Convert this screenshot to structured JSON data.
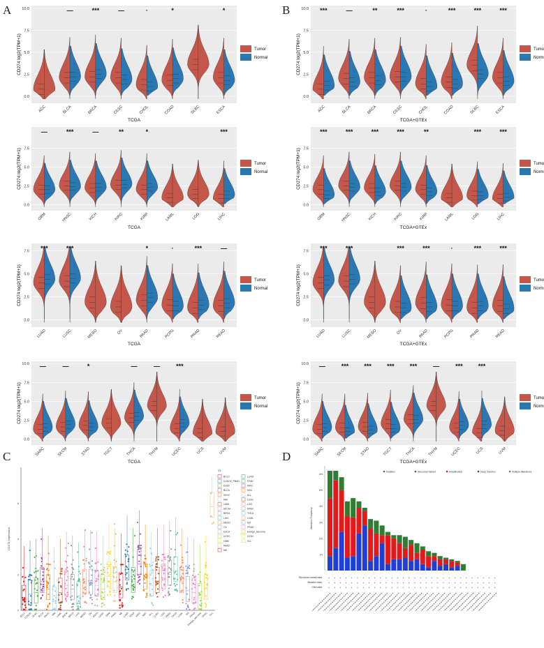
{
  "panel_labels": {
    "A": "A",
    "B": "B",
    "C": "C",
    "D": "D"
  },
  "legend": {
    "tumor": "Tumor",
    "normal": "Normal"
  },
  "colors": {
    "tumor_A": "#c4574a",
    "normal_A": "#2a78b3",
    "tumor_B": "#c4574a",
    "normal_B": "#2a78b3",
    "bg": "#ebebeb"
  },
  "ylabel": "CD274  log2(TPM+1)",
  "chart_data": [
    {
      "panel": "A",
      "type": "violin",
      "xlabel": "TCGA",
      "ylim": [
        -0.8,
        10.3
      ],
      "yticks": [
        0.0,
        2.5,
        5.0,
        7.5,
        10.0
      ],
      "ytick_labels": [
        "0.0",
        "2.5",
        "5.0",
        "7.5",
        "10.0"
      ],
      "categories": [
        "ACC",
        "BLCA",
        "BRCA",
        "CESC",
        "CHOL",
        "COAD",
        "DLBC",
        "ESCA"
      ],
      "tumor_median": [
        0.8,
        2.1,
        2.2,
        2.1,
        1.3,
        1.8,
        3.6,
        2.1
      ],
      "normal_median": [
        null,
        2.2,
        2.5,
        1.9,
        1.1,
        2.0,
        null,
        1.8
      ],
      "significance": [
        "",
        "—",
        "***",
        "—",
        "·",
        "*",
        "",
        "*"
      ]
    },
    {
      "panel": "A",
      "type": "violin",
      "xlabel": "TCGA",
      "ylim": [
        -0.8,
        10.3
      ],
      "yticks": [
        0.0,
        2.5,
        5.0,
        7.5
      ],
      "ytick_labels": [
        "0.0",
        "2.5",
        "5.0",
        "7.5"
      ],
      "categories": [
        "GBM",
        "HNSC",
        "KICH",
        "KIRC",
        "KIRP",
        "LAML",
        "LGG",
        "LIHC"
      ],
      "tumor_median": [
        2.0,
        2.5,
        2.2,
        2.6,
        2.0,
        0.9,
        1.4,
        0.8
      ],
      "normal_median": [
        2.0,
        2.4,
        2.3,
        2.7,
        2.3,
        null,
        null,
        1.3
      ],
      "significance": [
        "—",
        "***",
        "—",
        "**",
        "*",
        "",
        "",
        "***"
      ]
    },
    {
      "panel": "A",
      "type": "violin",
      "xlabel": "TCGA",
      "ylim": [
        -0.8,
        8.3
      ],
      "yticks": [
        0.0,
        2.5,
        5.0,
        7.5
      ],
      "ytick_labels": [
        "0.0",
        "2.5",
        "5.0",
        "7.5"
      ],
      "categories": [
        "LUAD",
        "LUSC",
        "MESO",
        "OV",
        "PAAD",
        "PCPG",
        "PRAD",
        "READ"
      ],
      "tumor_median": [
        4.0,
        4.2,
        1.9,
        1.4,
        2.1,
        1.6,
        1.3,
        1.5
      ],
      "normal_median": [
        4.4,
        4.5,
        null,
        null,
        2.4,
        1.5,
        1.6,
        1.8
      ],
      "significance": [
        "***",
        "***",
        "",
        "",
        "*",
        "·",
        "***",
        "—"
      ]
    },
    {
      "panel": "A",
      "type": "violin",
      "xlabel": "TCGA",
      "ylim": [
        -0.8,
        10.3
      ],
      "yticks": [
        0.0,
        2.5,
        5.0,
        7.5,
        10.0
      ],
      "ytick_labels": [
        "0.0",
        "2.5",
        "5.0",
        "7.5",
        "10.0"
      ],
      "categories": [
        "SARC",
        "SKCM",
        "STAD",
        "TGCT",
        "THCA",
        "THYM",
        "UCEC",
        "UCS",
        "UVM"
      ],
      "tumor_median": [
        1.3,
        1.6,
        1.8,
        2.1,
        2.8,
        4.4,
        1.4,
        0.8,
        1.0
      ],
      "normal_median": [
        1.5,
        1.9,
        1.6,
        null,
        3.0,
        null,
        2.1,
        null,
        null
      ],
      "significance": [
        "—",
        "—",
        "*",
        "",
        "—",
        "—",
        "***",
        "",
        ""
      ]
    },
    {
      "panel": "B",
      "type": "violin",
      "xlabel": "TCGA+GTEx",
      "ylim": [
        -0.8,
        10.3
      ],
      "yticks": [
        0.0,
        2.5,
        5.0,
        7.5,
        10.0
      ],
      "ytick_labels": [
        "0.0",
        "2.5",
        "5.0",
        "7.5",
        "10.0"
      ],
      "categories": [
        "ACC",
        "BLCA",
        "BRCA",
        "CESC",
        "CHOL",
        "COAD",
        "DLBC",
        "ESCA"
      ],
      "tumor_median": [
        0.8,
        2.0,
        2.1,
        2.2,
        1.4,
        1.6,
        3.5,
        2.1
      ],
      "normal_median": [
        1.2,
        1.6,
        1.8,
        2.2,
        1.1,
        1.4,
        2.5,
        1.7
      ],
      "significance": [
        "***",
        "—",
        "**",
        "***",
        "·",
        "***",
        "***",
        "***"
      ]
    },
    {
      "panel": "B",
      "type": "violin",
      "xlabel": "TCGA+GTEx",
      "ylim": [
        -0.8,
        10.3
      ],
      "yticks": [
        0.0,
        2.5,
        5.0,
        7.5
      ],
      "ytick_labels": [
        "0.0",
        "2.5",
        "5.0",
        "7.5"
      ],
      "categories": [
        "GBM",
        "HNSC",
        "KICH",
        "KIRC",
        "KIRP",
        "LAML",
        "LGG",
        "LIHC"
      ],
      "tumor_median": [
        2.0,
        2.5,
        2.2,
        2.5,
        2.0,
        0.9,
        1.2,
        0.8
      ],
      "normal_median": [
        1.3,
        2.3,
        1.7,
        2.3,
        1.7,
        null,
        1.2,
        1.0
      ],
      "significance": [
        "***",
        "***",
        "***",
        "***",
        "**",
        "",
        "***",
        "***"
      ]
    },
    {
      "panel": "B",
      "type": "violin",
      "xlabel": "TCGA+GTEx",
      "ylim": [
        -0.8,
        8.3
      ],
      "yticks": [
        0.0,
        2.5,
        5.0,
        7.5
      ],
      "ytick_labels": [
        "0.0",
        "2.5",
        "5.0",
        "7.5"
      ],
      "categories": [
        "LUAD",
        "LUSC",
        "MESO",
        "OV",
        "PAAD",
        "PCPG",
        "PRAD",
        "READ"
      ],
      "tumor_median": [
        4.0,
        4.2,
        1.9,
        1.4,
        1.8,
        1.6,
        1.3,
        1.5
      ],
      "normal_median": [
        4.3,
        4.4,
        null,
        1.3,
        1.4,
        1.5,
        1.5,
        1.2
      ],
      "significance": [
        "***",
        "***",
        "",
        "***",
        "***",
        "·",
        "***",
        "***"
      ]
    },
    {
      "panel": "B",
      "type": "violin",
      "xlabel": "TCGA+GTEx",
      "ylim": [
        -0.8,
        10.3
      ],
      "yticks": [
        0.0,
        2.5,
        5.0,
        7.5,
        10.0
      ],
      "ytick_labels": [
        "0.0",
        "2.5",
        "5.0",
        "7.5",
        "10.0"
      ],
      "categories": [
        "SARC",
        "SKCM",
        "STAD",
        "TGCT",
        "THCA",
        "THYM",
        "UCEC",
        "UCS",
        "UVM"
      ],
      "tumor_median": [
        1.3,
        1.5,
        1.6,
        2.0,
        2.6,
        4.4,
        1.5,
        0.8,
        1.1
      ],
      "normal_median": [
        1.5,
        1.0,
        1.2,
        1.4,
        2.6,
        null,
        1.8,
        1.9,
        null
      ],
      "significance": [
        "—",
        "***",
        "***",
        "***",
        "***",
        "—",
        "***",
        "***",
        ""
      ]
    },
    {
      "panel": "C",
      "type": "scatter",
      "ylabel": "CD274 expression",
      "categories": [
        "BCLC",
        "CCKO2",
        "DLBC",
        "BLCA",
        "SKHC",
        "MM",
        "LAML",
        "SKCM",
        "BRCA",
        "LIHC",
        "MESO",
        "OV",
        "ESCA",
        "UCEC",
        "GBM",
        "PAAD",
        "NB",
        "LUAD",
        "STAD",
        "KIRC",
        "NSC",
        "ALL",
        "LUSC",
        "LGG",
        "HNSC",
        "THCA",
        "LCML",
        "M3",
        "PRAD",
        "Ewings_sarcoma",
        "CESC",
        "CLL"
      ],
      "medians": [
        0.6,
        0.9,
        1.0,
        1.6,
        1.2,
        0.5,
        1.0,
        1.4,
        1.2,
        0.8,
        1.5,
        1.5,
        1.4,
        1.2,
        1.9,
        1.6,
        1.3,
        2.3,
        1.6,
        2.6,
        1.8,
        1.4,
        1.6,
        1.8,
        2.0,
        2.2,
        1.6,
        1.1,
        1.0,
        0.7,
        1.2,
        5.8
      ],
      "legend_title": "V1",
      "legend_items": [
        "BCLC",
        "CCKO2_PBAD",
        "DLBC",
        "BLCA",
        "SKHC",
        "MM",
        "LAML",
        "SKCM",
        "BRCA",
        "LIHC",
        "MESO",
        "OV",
        "ESCA",
        "UCEC",
        "GBM",
        "PAAD",
        "NB",
        "LUAD",
        "STAD",
        "KIRC",
        "NSC",
        "ALL",
        "LUSC",
        "LGG",
        "HNSC",
        "THCA",
        "LCML",
        "M3",
        "PRAD",
        "Ewings_sarcoma",
        "CESC",
        "CLL"
      ]
    },
    {
      "panel": "D",
      "type": "bar",
      "ylabel": "Alteration Frequency",
      "legend_items": [
        "Mutation",
        "Structural Variant",
        "Amplification",
        "Deep Deletion",
        "Multiple Alterations"
      ],
      "legend_colors": [
        "#2e7d32",
        "#7b3fa0",
        "#e31a1c",
        "#1f3fd8",
        "#777777"
      ],
      "yticks": [
        "1%",
        "2%",
        "3%",
        "4%",
        "5%",
        "6%"
      ],
      "bars": [
        {
          "amp": 3.6,
          "del": 0.9,
          "mut": 1.7
        },
        {
          "amp": 4.2,
          "del": 1.4,
          "mut": 0.6
        },
        {
          "amp": 2.6,
          "del": 2.4,
          "mut": 0.8
        },
        {
          "amp": 2.6,
          "del": 0.8,
          "mut": 0.9
        },
        {
          "amp": 2.4,
          "del": 0.9,
          "mut": 1.2
        },
        {
          "amp": 1.6,
          "del": 2.3,
          "mut": 0.4
        },
        {
          "amp": 0.9,
          "del": 2.8,
          "mut": 0.2
        },
        {
          "amp": 2.0,
          "del": 0.6,
          "mut": 0.6
        },
        {
          "amp": 1.4,
          "del": 0.9,
          "mut": 0.8
        },
        {
          "amp": 0.5,
          "del": 1.7,
          "mut": 0.6
        },
        {
          "amp": 1.8,
          "del": 0.4,
          "mut": 0.2
        },
        {
          "amp": 1.3,
          "del": 0.7,
          "mut": 0.2
        },
        {
          "amp": 1.0,
          "del": 0.7,
          "mut": 0.5
        },
        {
          "amp": 0.6,
          "del": 0.8,
          "mut": 0.7
        },
        {
          "amp": 1.0,
          "del": 0.6,
          "mut": 0.3
        },
        {
          "amp": 0.4,
          "del": 0.7,
          "mut": 0.6
        },
        {
          "amp": 0.9,
          "del": 0.4,
          "mut": 0.2
        },
        {
          "amp": 0.7,
          "del": 0.2,
          "mut": 0.3
        },
        {
          "amp": 0.3,
          "del": 0.6,
          "mut": 0.2
        },
        {
          "amp": 0.4,
          "del": 0.3,
          "mut": 0.2
        },
        {
          "amp": 0.3,
          "del": 0.4,
          "mut": 0.1
        },
        {
          "amp": 0.4,
          "del": 0.2,
          "mut": 0.1
        },
        {
          "amp": 0.2,
          "del": 0.3,
          "mut": 0.1
        },
        {
          "amp": 0.0,
          "del": 0.0,
          "mut": 0.4
        }
      ],
      "row_labels": [
        "Structural variant data",
        "Mutation data",
        "CNA data"
      ]
    }
  ]
}
